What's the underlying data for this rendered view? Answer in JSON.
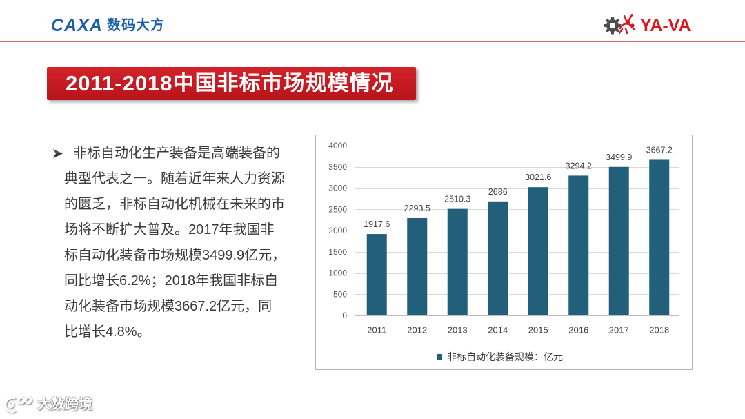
{
  "header": {
    "logo_left": {
      "brand": "CAXA",
      "name": "数码大方",
      "color": "#1b5faa"
    },
    "logo_right": {
      "text": "YA-VA",
      "color": "#e2141c",
      "icons": [
        "gear-icon",
        "mascot-icon"
      ]
    },
    "rule_color": "#e26b6b"
  },
  "title": {
    "text": "2011-2018中国非标市场规模情况",
    "bg_color": "#c81a21"
  },
  "body": {
    "bullet_icon": "arrow-bullet-icon",
    "text_color": "#3a3a3a",
    "lines": [
      "非标自动化生产装备是高端装备的",
      "典型代表之一。随着近年来人力资源",
      "的匮乏，非标自动化机械在未来的市",
      "场将不断扩大普及。2017年我国非",
      "标自动化装备市场规模3499.9亿元，",
      "同比增长6.2%；2018年我国非标自",
      "动化装备市场规模3667.2亿元，同",
      "比增长4.8%。"
    ]
  },
  "chart_data": {
    "type": "bar",
    "categories": [
      "2011",
      "2012",
      "2013",
      "2014",
      "2015",
      "2016",
      "2017",
      "2018"
    ],
    "series": [
      {
        "name": "非标自动化装备规模：亿元",
        "values": [
          1917.6,
          2293.5,
          2510.3,
          2686,
          3021.6,
          3294.2,
          3499.9,
          3667.2
        ],
        "color": "#215f7a"
      }
    ],
    "ylim": [
      0,
      4000
    ],
    "yticks": [
      0,
      500,
      1000,
      1500,
      2000,
      2500,
      3000,
      3500,
      4000
    ],
    "grid": true,
    "data_labels": true,
    "legend": "bottom",
    "grid_color": "#d9d9d9",
    "axis_color": "#bfbfbf"
  },
  "watermark": {
    "text": "大数跨境",
    "icon": "watermark-logo-icon"
  }
}
